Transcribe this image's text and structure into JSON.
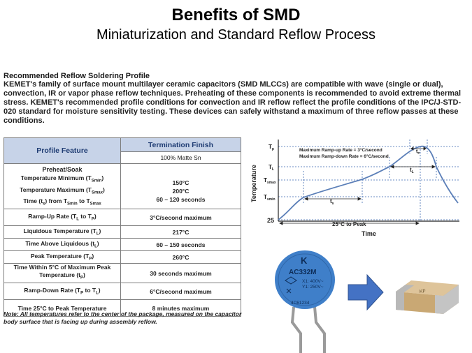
{
  "header": {
    "title": "Benefits of SMD",
    "subtitle": "Miniaturization and Standard Reflow Process"
  },
  "section": {
    "heading": "Recommended Reflow Soldering Profile",
    "intro": "KEMET's family of surface mount multilayer ceramic capacitors (SMD MLCCs) are compatible with wave (single or dual), convection, IR or vapor phase reflow techniques. Preheating of these components is recommended to avoid extreme thermal stress. KEMET's recommended profile conditions for convection and IR reflow reflect the profile conditions of the IPC/J-STD-020 standard for moisture sensitivity testing. These devices can safely withstand a maximum of three reflow passes at these conditions."
  },
  "table": {
    "col1_header": "Profile Feature",
    "col2_header": "Termination Finish",
    "col2_subheader": "100% Matte Sn",
    "group_label": "Preheat/Soak",
    "rows": [
      {
        "feature": "Temperature Minimum (T",
        "sub": "Smin",
        "tail": ")",
        "value": "150°C"
      },
      {
        "feature": "Temperature Maximum (T",
        "sub": "Smax",
        "tail": ")",
        "value": "200°C"
      },
      {
        "feature": "Time (t",
        "sub": "s",
        "tail": ") from T",
        "sub2": "Smin",
        "tail2": " to T",
        "sub3": "Smax",
        "tail3": "",
        "value": "60 – 120 seconds"
      },
      {
        "feature": "Ramp-Up Rate (T",
        "sub": "L",
        "tail": " to T",
        "sub2": "P",
        "tail2": ")",
        "value": "3°C/second maximum"
      },
      {
        "feature": "Liquidous Temperature (T",
        "sub": "L",
        "tail": ")",
        "value": "217°C"
      },
      {
        "feature": "Time Above Liquidous (t",
        "sub": "L",
        "tail": ")",
        "value": "60 – 150 seconds"
      },
      {
        "feature": "Peak Temperature (T",
        "sub": "P",
        "tail": ")",
        "value": "260°C"
      },
      {
        "feature": "Time Within 5°C of Maximum Peak Temperature (t",
        "sub": "P",
        "tail": ")",
        "value": "30 seconds maximum"
      },
      {
        "feature": "Ramp-Down Rate (T",
        "sub": "P",
        "tail": " to T",
        "sub2": "L",
        "tail2": ")",
        "value": "6°C/second maximum"
      },
      {
        "feature": "Time 25°C to Peak Temperature",
        "value": "8 minutes maximum"
      }
    ]
  },
  "note": "Note: All temperatures refer to the center of the package, measured on the capacitor body surface that is facing up during assembly reflow.",
  "profile_chart": {
    "y_axis_label": "Temperature",
    "x_axis_label": "Time",
    "y_marks": [
      "T",
      "T",
      "T",
      "T",
      "25"
    ],
    "y_mark_subs": [
      "p",
      "L",
      "smax",
      "smin",
      ""
    ],
    "ramp_up_text": "Maximum Ramp-up Rate = 3°C/second",
    "ramp_down_text": "Maximum Ramp-down Rate = 6°C/second",
    "ts_label": "t",
    "ts_sub": "s",
    "tl_label": "t",
    "tl_sub": "L",
    "tp_label": "t",
    "tp_sub": "P",
    "to_peak_label": "25°C to Peak",
    "colors": {
      "curve": "#5b7fb8",
      "dotted": "#3a66b0",
      "axis": "#222222"
    }
  },
  "parts": {
    "disc_logo": "K",
    "disc_code": "AC332M",
    "disc_rating1": "X1: 400V~",
    "disc_rating2": "Y1: 250V~",
    "disc_serial": "4C61234",
    "smd_mark": "KF",
    "colors": {
      "disc": "#3f7fc9",
      "arrow": "#4472c4",
      "smd_body": "#c9a874",
      "smd_term": "#b8b8b8"
    }
  }
}
